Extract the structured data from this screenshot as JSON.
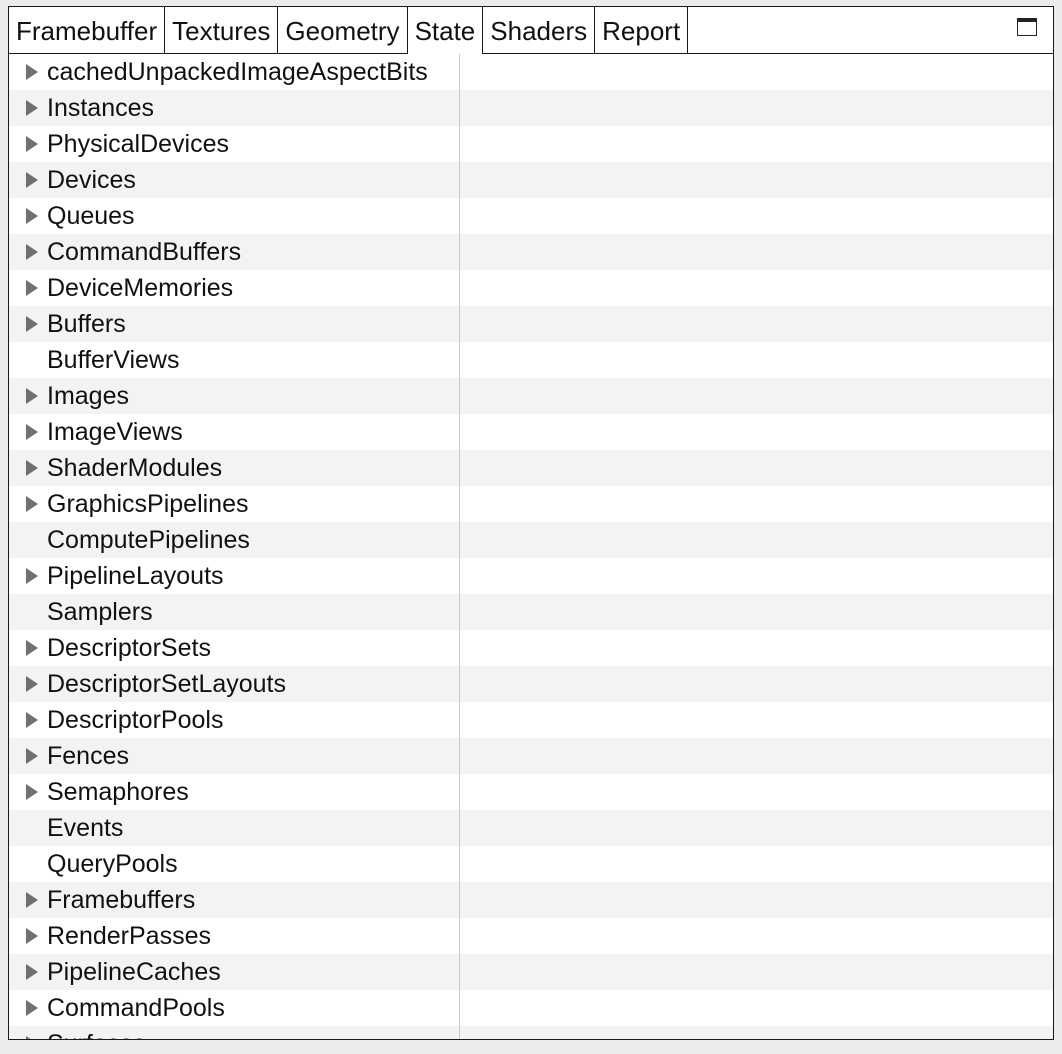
{
  "tabs": [
    {
      "label": "Framebuffer",
      "active": false
    },
    {
      "label": "Textures",
      "active": false
    },
    {
      "label": "Geometry",
      "active": false
    },
    {
      "label": "State",
      "active": true
    },
    {
      "label": "Shaders",
      "active": false
    },
    {
      "label": "Report",
      "active": false
    }
  ],
  "maximize_icon": "window-maximize-icon",
  "expander_icon": "triangle-right-icon",
  "tree_items": [
    {
      "label": "cachedUnpackedImageAspectBits",
      "expandable": true
    },
    {
      "label": "Instances",
      "expandable": true
    },
    {
      "label": "PhysicalDevices",
      "expandable": true
    },
    {
      "label": "Devices",
      "expandable": true
    },
    {
      "label": "Queues",
      "expandable": true
    },
    {
      "label": "CommandBuffers",
      "expandable": true
    },
    {
      "label": "DeviceMemories",
      "expandable": true
    },
    {
      "label": "Buffers",
      "expandable": true
    },
    {
      "label": "BufferViews",
      "expandable": false
    },
    {
      "label": "Images",
      "expandable": true
    },
    {
      "label": "ImageViews",
      "expandable": true
    },
    {
      "label": "ShaderModules",
      "expandable": true
    },
    {
      "label": "GraphicsPipelines",
      "expandable": true
    },
    {
      "label": "ComputePipelines",
      "expandable": false
    },
    {
      "label": "PipelineLayouts",
      "expandable": true
    },
    {
      "label": "Samplers",
      "expandable": false
    },
    {
      "label": "DescriptorSets",
      "expandable": true
    },
    {
      "label": "DescriptorSetLayouts",
      "expandable": true
    },
    {
      "label": "DescriptorPools",
      "expandable": true
    },
    {
      "label": "Fences",
      "expandable": true
    },
    {
      "label": "Semaphores",
      "expandable": true
    },
    {
      "label": "Events",
      "expandable": false
    },
    {
      "label": "QueryPools",
      "expandable": false
    },
    {
      "label": "Framebuffers",
      "expandable": true
    },
    {
      "label": "RenderPasses",
      "expandable": true
    },
    {
      "label": "PipelineCaches",
      "expandable": true
    },
    {
      "label": "CommandPools",
      "expandable": true
    },
    {
      "label": "Surfaces",
      "expandable": true
    }
  ]
}
